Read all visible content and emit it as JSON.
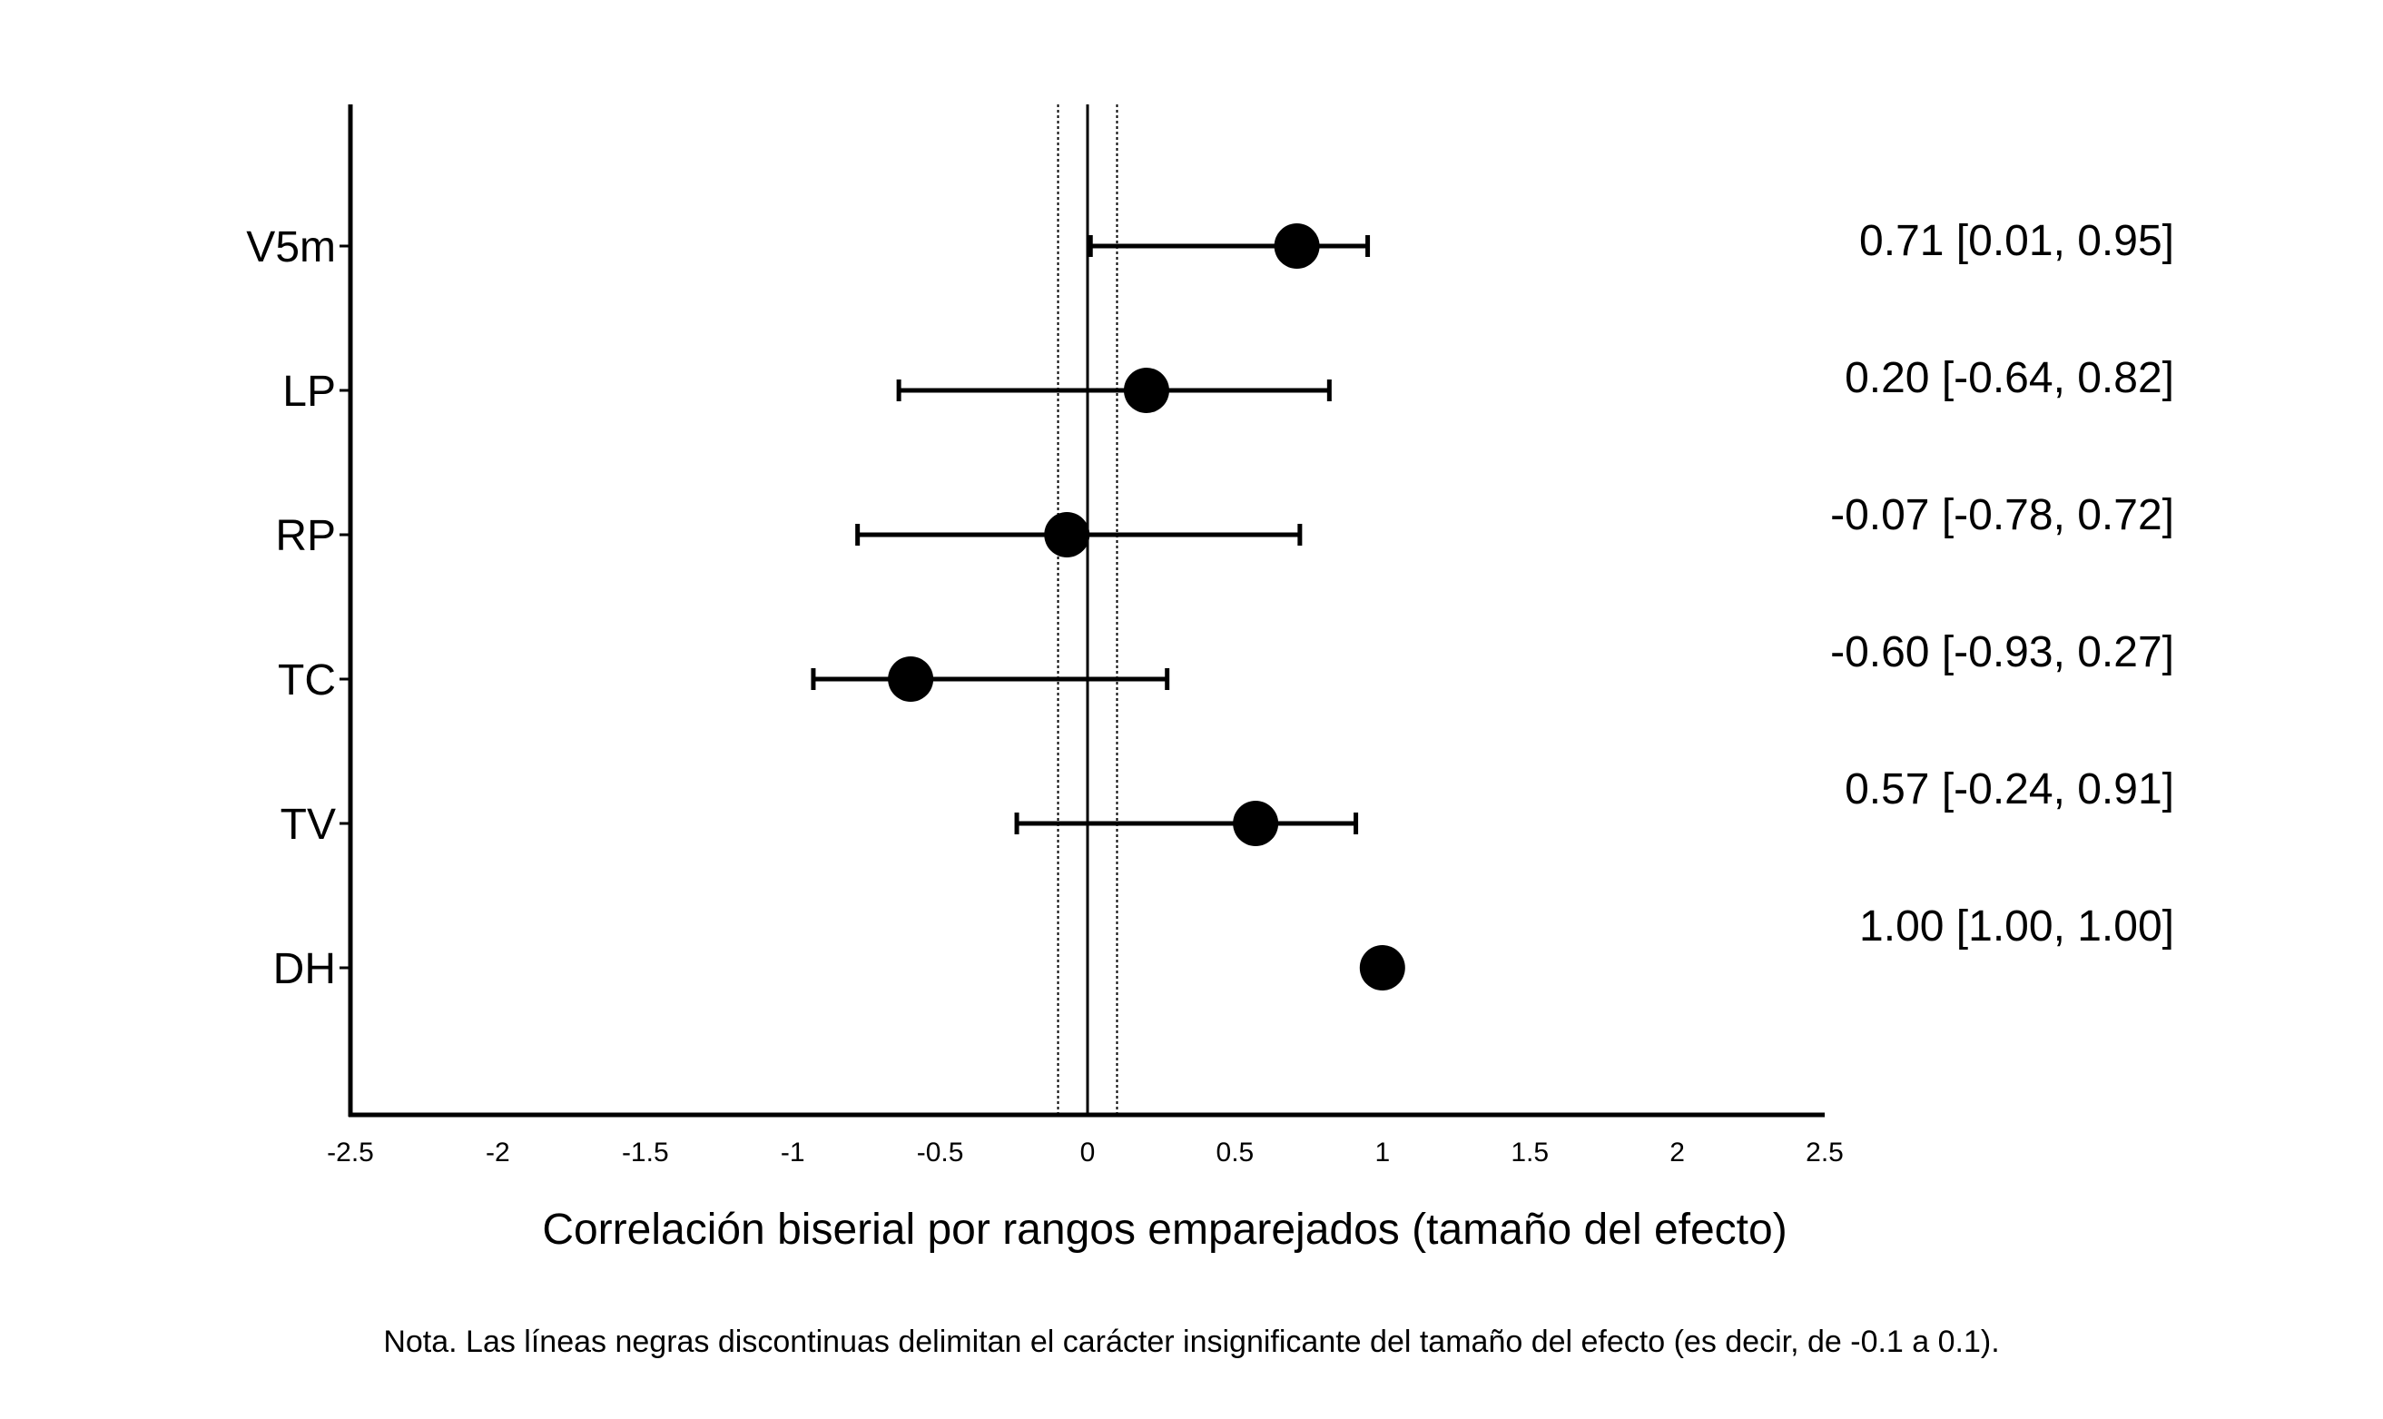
{
  "chart_data": {
    "type": "scatter",
    "subtype": "forest-plot",
    "xlabel": "Correlación biserial por rangos emparejados (tamaño del efecto)",
    "xlim": [
      -2.5,
      2.5
    ],
    "xticks": [
      -2.5,
      -2,
      -1.5,
      -1,
      -0.5,
      0,
      0.5,
      1,
      1.5,
      2,
      2.5
    ],
    "xtick_labels": [
      "-2.5",
      "-2",
      "-1.5",
      "-1",
      "-0.5",
      "0",
      "0.5",
      "1",
      "1.5",
      "2",
      "2.5"
    ],
    "reference_line": 0,
    "negligible_band_lines": [
      -0.1,
      0.1
    ],
    "grid": false,
    "rows": [
      {
        "label": "V5m",
        "estimate": 0.71,
        "ci_low": 0.01,
        "ci_high": 0.95,
        "annotation": "0.71 [0.01, 0.95]"
      },
      {
        "label": "LP",
        "estimate": 0.2,
        "ci_low": -0.64,
        "ci_high": 0.82,
        "annotation": "0.20 [-0.64, 0.82]"
      },
      {
        "label": "RP",
        "estimate": -0.07,
        "ci_low": -0.78,
        "ci_high": 0.72,
        "annotation": "-0.07 [-0.78, 0.72]"
      },
      {
        "label": "TC",
        "estimate": -0.6,
        "ci_low": -0.93,
        "ci_high": 0.27,
        "annotation": "-0.60 [-0.93, 0.27]"
      },
      {
        "label": "TV",
        "estimate": 0.57,
        "ci_low": -0.24,
        "ci_high": 0.91,
        "annotation": "0.57 [-0.24, 0.91]"
      },
      {
        "label": "DH",
        "estimate": 1.0,
        "ci_low": 1.0,
        "ci_high": 1.0,
        "annotation": "1.00 [1.00, 1.00]"
      }
    ]
  },
  "note": "Nota. Las líneas negras discontinuas delimitan el carácter insignificante del tamaño del efecto (es decir, de -0.1 a 0.1)."
}
